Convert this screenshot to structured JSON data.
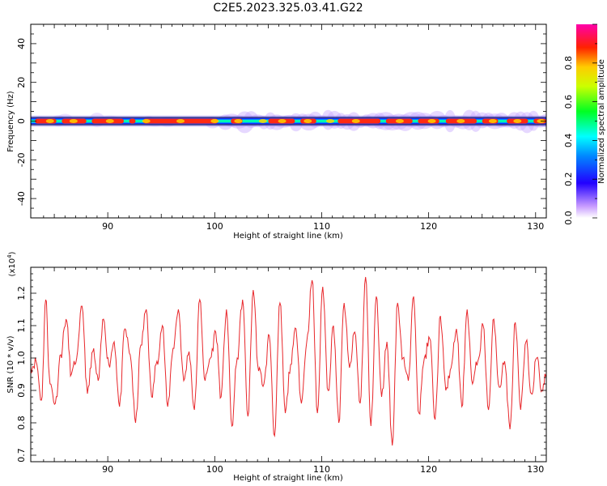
{
  "title": "C2E5.2023.325.03.41.G22",
  "chart_data": [
    {
      "type": "heatmap",
      "name": "spectrogram",
      "xlabel": "Height of straight line (km)",
      "ylabel": "Frequency (Hz)",
      "xlim": [
        82.8,
        131.0
      ],
      "ylim": [
        -50,
        50
      ],
      "xticks": [
        90,
        100,
        110,
        120,
        130
      ],
      "yticks": [
        -40,
        -20,
        0,
        20,
        40
      ],
      "ridge_frequency": 0,
      "colorbar": {
        "label": "Normalized spectral amplitude",
        "range": [
          0,
          1
        ],
        "ticks": [
          "0.0",
          "0.2",
          "0.4",
          "0.6",
          "0.8"
        ]
      }
    },
    {
      "type": "line",
      "name": "snr",
      "xlabel": "Height of straight line (km)",
      "ylabel": "SNR (10 * v/v)",
      "yscale_label": "(x10",
      "yscale_exp": "4",
      "yscale_close": ")",
      "xlim": [
        82.8,
        131.0
      ],
      "ylim": [
        0.68,
        1.28
      ],
      "xticks": [
        90,
        100,
        110,
        120,
        130
      ],
      "yticks": [
        "0.7",
        "0.8",
        "0.9",
        "1.0",
        "1.1",
        "1.2"
      ],
      "series": [
        {
          "color": "#e8262a",
          "x": [
            82.8,
            83.3,
            83.8,
            84.2,
            84.6,
            85.1,
            85.6,
            86.1,
            86.6,
            87.1,
            87.6,
            88.1,
            88.6,
            89.1,
            89.6,
            90.1,
            90.6,
            91.1,
            91.6,
            92.1,
            92.6,
            93.1,
            93.6,
            94.1,
            94.6,
            95.1,
            95.6,
            96.1,
            96.6,
            97.1,
            97.6,
            98.1,
            98.6,
            99.1,
            99.6,
            100.1,
            100.6,
            101.1,
            101.6,
            102.1,
            102.6,
            103.1,
            103.6,
            104.1,
            104.6,
            105.1,
            105.6,
            106.1,
            106.6,
            107.1,
            107.6,
            108.1,
            108.6,
            109.1,
            109.6,
            110.1,
            110.6,
            111.1,
            111.6,
            112.1,
            112.6,
            113.1,
            113.6,
            114.1,
            114.6,
            115.1,
            115.6,
            116.1,
            116.6,
            117.1,
            117.6,
            118.1,
            118.6,
            119.1,
            119.6,
            120.1,
            120.6,
            121.1,
            121.6,
            122.1,
            122.6,
            123.1,
            123.6,
            124.1,
            124.6,
            125.1,
            125.6,
            126.1,
            126.6,
            127.1,
            127.6,
            128.1,
            128.6,
            129.1,
            129.6,
            130.1,
            130.6,
            131.0
          ],
          "y": [
            0.97,
            0.99,
            0.87,
            1.18,
            0.92,
            0.86,
            1.01,
            1.12,
            0.95,
            1.0,
            1.16,
            0.89,
            1.02,
            0.93,
            1.12,
            0.98,
            1.05,
            0.85,
            1.09,
            1.01,
            0.8,
            1.04,
            1.15,
            0.88,
            0.99,
            1.1,
            0.85,
            1.03,
            1.15,
            0.93,
            1.02,
            0.84,
            1.18,
            0.93,
            1.0,
            1.08,
            0.88,
            1.15,
            0.79,
            1.0,
            1.18,
            0.82,
            1.21,
            0.96,
            0.92,
            1.07,
            0.76,
            1.17,
            0.83,
            0.98,
            1.09,
            0.86,
            1.05,
            1.24,
            0.83,
            1.22,
            0.9,
            1.1,
            0.8,
            1.17,
            0.97,
            1.08,
            0.86,
            1.25,
            0.79,
            1.19,
            0.88,
            1.05,
            0.73,
            1.17,
            1.0,
            0.93,
            1.19,
            0.83,
            1.0,
            1.06,
            0.81,
            1.13,
            0.9,
            0.97,
            1.09,
            0.85,
            1.15,
            0.92,
            0.99,
            1.1,
            0.84,
            1.12,
            0.91,
            0.99,
            0.78,
            1.11,
            0.84,
            1.05,
            0.89,
            1.0,
            0.9,
            0.95
          ]
        }
      ]
    }
  ]
}
